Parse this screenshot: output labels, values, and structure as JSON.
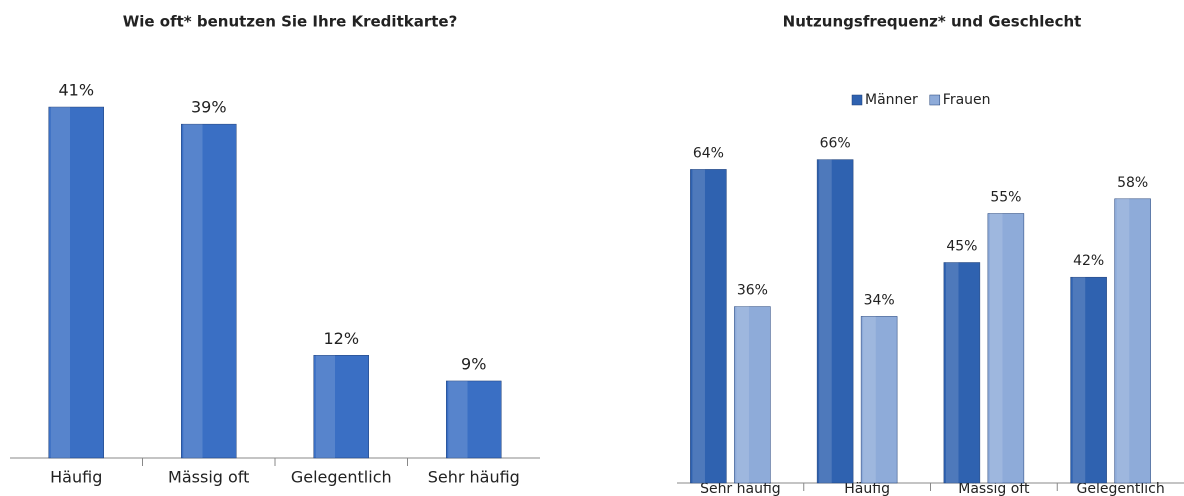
{
  "chart_data": [
    {
      "type": "bar",
      "title": "Wie oft* benutzen Sie Ihre Kreditkarte?",
      "categories": [
        "Häufig",
        "Mässig oft",
        "Gelegentlich",
        "Sehr häufig"
      ],
      "values": [
        41,
        39,
        12,
        9
      ],
      "value_labels": [
        "41%",
        "39%",
        "12%",
        "9%"
      ],
      "color": "#3a6fc4"
    },
    {
      "type": "bar",
      "title": "Nutzungsfrequenz* und Geschlecht",
      "categories": [
        "Sehr häufig",
        "Häufig",
        "Mässig oft",
        "Gelegentlich"
      ],
      "series": [
        {
          "name": "Männer",
          "color": "#2f62b0",
          "values": [
            64,
            66,
            45,
            42
          ],
          "value_labels": [
            "64%",
            "66%",
            "45%",
            "42%"
          ]
        },
        {
          "name": "Frauen",
          "color": "#8eabd9",
          "values": [
            36,
            34,
            55,
            58
          ],
          "value_labels": [
            "36%",
            "34%",
            "55%",
            "58%"
          ]
        }
      ],
      "legend": "top"
    }
  ]
}
